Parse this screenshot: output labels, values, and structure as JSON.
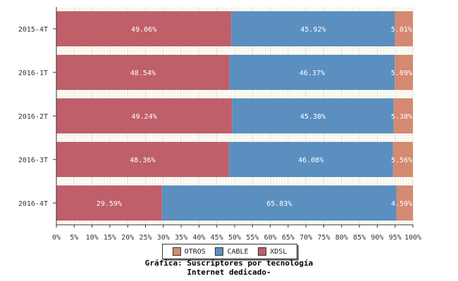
{
  "chart_data": {
    "type": "bar",
    "orientation": "horizontal",
    "stacked": true,
    "categories": [
      "2015-4T",
      "2016-1T",
      "2016-2T",
      "2016-3T",
      "2016-4T"
    ],
    "series": [
      {
        "name": "XDSL",
        "color": "#bf5f6a",
        "values": [
          49.06,
          48.54,
          49.24,
          48.36,
          29.59
        ],
        "labels": [
          "49.06%",
          "48.54%",
          "49.24%",
          "48.36%",
          "29.59%"
        ]
      },
      {
        "name": "CABLE",
        "color": "#5b8fc0",
        "values": [
          45.92,
          46.37,
          45.38,
          46.08,
          65.83
        ],
        "labels": [
          "45.92%",
          "46.37%",
          "45.38%",
          "46.08%",
          "65.83%"
        ]
      },
      {
        "name": "OTROS",
        "color": "#d48a70",
        "values": [
          5.01,
          5.09,
          5.38,
          5.56,
          4.59
        ],
        "labels": [
          "5.01%",
          "5.09%",
          "5.38%",
          "5.56%",
          "4.59%"
        ]
      }
    ],
    "xlim": [
      0,
      100
    ],
    "xticks": [
      "0%",
      "5%",
      "10%",
      "15%",
      "20%",
      "25%",
      "30%",
      "35%",
      "40%",
      "45%",
      "50%",
      "55%",
      "60%",
      "65%",
      "70%",
      "75%",
      "80%",
      "85%",
      "90%",
      "95%",
      "100%"
    ],
    "legend_placement": "bottom",
    "legend_order": [
      "OTROS",
      "CABLE",
      "XDSL"
    ]
  },
  "legend": {
    "otros": "OTROS",
    "cable": "CABLE",
    "xdsl": "XDSL"
  },
  "caption": {
    "line1": "Gráfica: Suscriptores por tecnología",
    "line2": "Internet dedicado-"
  }
}
